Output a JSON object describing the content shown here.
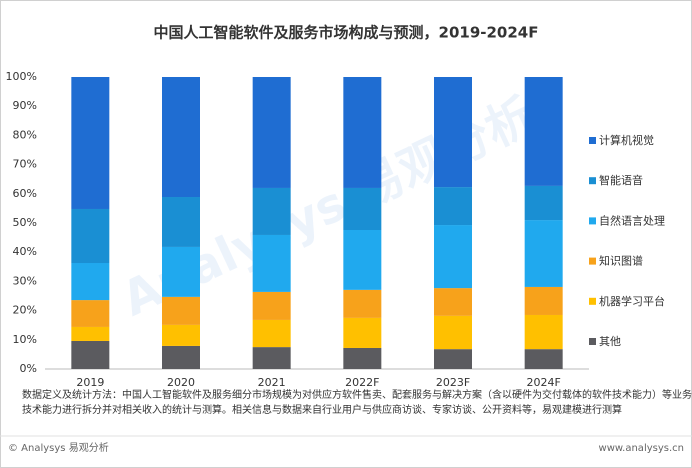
{
  "chart_data": {
    "type": "stacked-bar",
    "title": "中国人工智能软件及服务市场构成与预测，2019-2024F",
    "categories": [
      "2019",
      "2020",
      "2021",
      "2022F",
      "2023F",
      "2024F"
    ],
    "series": [
      {
        "name": "其他",
        "color": "#5b5b5f",
        "values": [
          9.6,
          7.9,
          7.5,
          7.2,
          6.8,
          6.8
        ]
      },
      {
        "name": "机器学习平台",
        "color": "#ffc000",
        "values": [
          4.8,
          7.2,
          9.3,
          10.3,
          11.4,
          11.7
        ]
      },
      {
        "name": "知识图谱",
        "color": "#f7a21b",
        "values": [
          9.2,
          9.6,
          9.6,
          9.6,
          9.5,
          9.6
        ]
      },
      {
        "name": "自然语言处理",
        "color": "#20a9ee",
        "values": [
          12.7,
          17.1,
          19.5,
          20.5,
          21.6,
          22.9
        ]
      },
      {
        "name": "智能语音",
        "color": "#1a8fd3",
        "values": [
          18.5,
          17.1,
          16.1,
          14.4,
          13.0,
          11.7
        ]
      },
      {
        "name": "计算机视觉",
        "color": "#1f6dd2",
        "values": [
          45.2,
          41.1,
          38.0,
          38.0,
          37.7,
          37.3
        ]
      }
    ],
    "ylim": [
      0,
      100
    ],
    "yticks": [
      {
        "value": 0,
        "label": "0%"
      },
      {
        "value": 10,
        "label": "10%"
      },
      {
        "value": 20,
        "label": "20%"
      },
      {
        "value": 30,
        "label": "30%"
      },
      {
        "value": 40,
        "label": "40%"
      },
      {
        "value": 50,
        "label": "50%"
      },
      {
        "value": 60,
        "label": "60%"
      },
      {
        "value": 70,
        "label": "70%"
      },
      {
        "value": 80,
        "label": "80%"
      },
      {
        "value": 90,
        "label": "90%"
      },
      {
        "value": 100,
        "label": "100%"
      }
    ],
    "watermark": "Analysys 易观分析",
    "notes": [
      "数据定义及统计方法：中国人工智能软件及服务细分市场规模为对供应方软件售卖、配套服务与解决方案（含以硬件为交付载体的软件技术能力）等业务以",
      "技术能力进行拆分并对相关收入的统计与测算。相关信息与数据来自行业用户与供应商访谈、专家访谈、公开资料等，易观建模进行测算"
    ],
    "source": "© Analysys 易观分析",
    "website": "www.analysys.cn"
  }
}
